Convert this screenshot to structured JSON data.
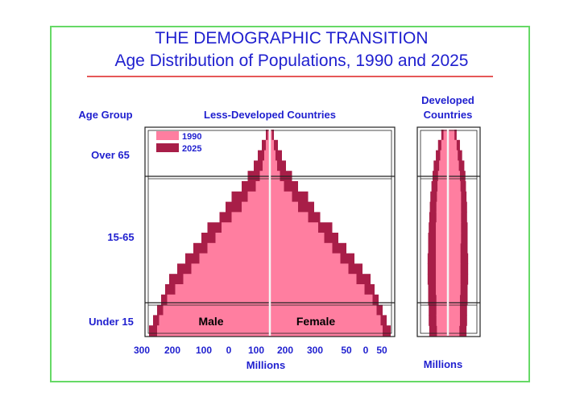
{
  "colors": {
    "y1990": "#ff7ea0",
    "y2025": "#a81e48",
    "title": "#1f1fcf",
    "frame": "#66d966",
    "rule": "#dd2020"
  },
  "title": {
    "line1": "THE DEMOGRAPHIC TRANSITION",
    "line2": "Age Distribution of Populations, 1990 and 2025"
  },
  "chart_data": {
    "type": "bar",
    "title": "THE DEMOGRAPHIC TRANSITION",
    "subtitle": "Age Distribution of Populations, 1990 and 2025",
    "y_axis_title": "Age Group",
    "age_groups": [
      "Over 65",
      "15-65",
      "Under 15"
    ],
    "legend": [
      "1990",
      "2025"
    ],
    "x_unit": "Millions",
    "panels": [
      {
        "name": "Less-Developed Countries",
        "sides": [
          "Male",
          "Female"
        ],
        "ticks": [
          "300",
          "200",
          "100",
          "0",
          "100",
          "200",
          "300"
        ],
        "xlim": [
          -300,
          300
        ],
        "male_2025": [
          10,
          20,
          30,
          40,
          55,
          70,
          95,
          110,
          125,
          155,
          170,
          190,
          210,
          230,
          250,
          260,
          270,
          280,
          290,
          300
        ],
        "male_1990": [
          5,
          10,
          14,
          18,
          25,
          35,
          55,
          70,
          95,
          120,
          135,
          155,
          175,
          195,
          215,
          235,
          255,
          265,
          275,
          280
        ],
        "female_2025": [
          10,
          20,
          30,
          40,
          55,
          70,
          95,
          110,
          125,
          155,
          170,
          190,
          210,
          230,
          250,
          260,
          270,
          280,
          290,
          300
        ],
        "female_1990": [
          5,
          10,
          14,
          18,
          25,
          35,
          55,
          70,
          95,
          120,
          135,
          155,
          175,
          195,
          215,
          235,
          255,
          265,
          275,
          280
        ]
      },
      {
        "name": "Developed Countries",
        "ticks": [
          "50",
          "0",
          "50"
        ],
        "xlim": [
          -50,
          50
        ],
        "male_2025": [
          12,
          18,
          22,
          26,
          28,
          30,
          32,
          33,
          34,
          35,
          36,
          36,
          37,
          37,
          37,
          36,
          36,
          35,
          35,
          34
        ],
        "male_1990": [
          8,
          12,
          14,
          16,
          18,
          19,
          20,
          21,
          21,
          22,
          22,
          22,
          22,
          22,
          22,
          22,
          21,
          21,
          21,
          20
        ],
        "female_2025": [
          16,
          22,
          26,
          30,
          32,
          33,
          34,
          35,
          35,
          36,
          36,
          36,
          37,
          37,
          37,
          36,
          36,
          35,
          35,
          34
        ],
        "female_1990": [
          12,
          16,
          18,
          20,
          22,
          23,
          24,
          24,
          24,
          24,
          24,
          23,
          23,
          23,
          23,
          23,
          22,
          22,
          22,
          21
        ]
      }
    ]
  }
}
